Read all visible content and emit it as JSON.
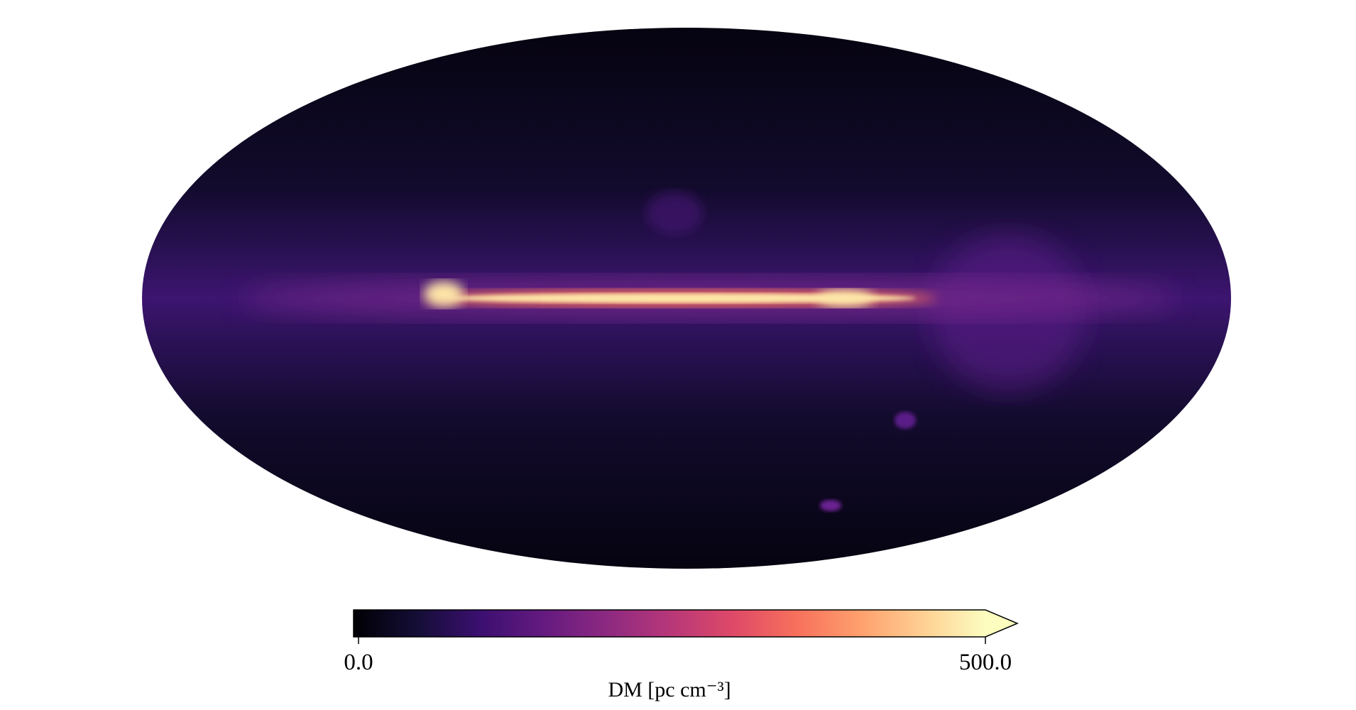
{
  "chart_data": {
    "type": "colorbar",
    "colorbar_label": "DM [pc cm⁻³]",
    "clim": [
      0,
      500
    ],
    "ticks": [
      {
        "value": 0,
        "label": "0.0"
      },
      {
        "value": 500,
        "label": "500.0"
      }
    ],
    "extend": "max"
  }
}
